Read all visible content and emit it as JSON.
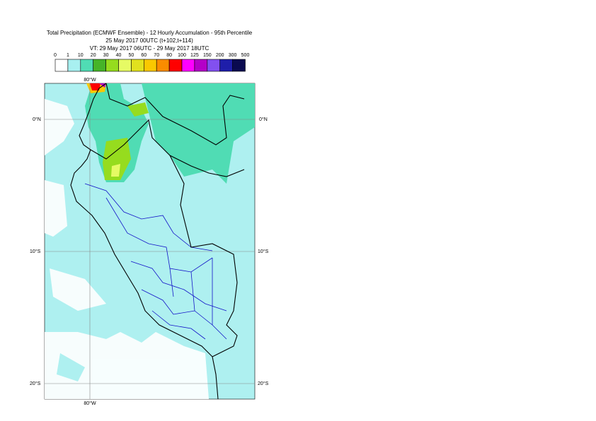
{
  "header": {
    "title_lines": [
      "Total Precipitation (ECMWF Ensemble) - 12 Hourly Accumulation - 95th Percentile",
      "25 May 2017 00UTC (t+102,t+114)",
      "VT: 29 May 2017 06UTC - 29 May 2017 18UTC"
    ]
  },
  "legend": {
    "labels": [
      0,
      1,
      10,
      20,
      30,
      40,
      50,
      60,
      70,
      80,
      100,
      125,
      150,
      200,
      300,
      500
    ],
    "colors": [
      "#ffffff",
      "#a8f0f0",
      "#50dcb4",
      "#46b428",
      "#96dc1e",
      "#e6fa64",
      "#e1e11e",
      "#fac800",
      "#fa8c00",
      "#ff0000",
      "#ff00ff",
      "#b400c8",
      "#8250f0",
      "#1e1eaa",
      "#0a0a50"
    ]
  },
  "map": {
    "lat_labels": [
      "0°N",
      "10°S",
      "20°S"
    ],
    "lon_label": "80°W"
  }
}
